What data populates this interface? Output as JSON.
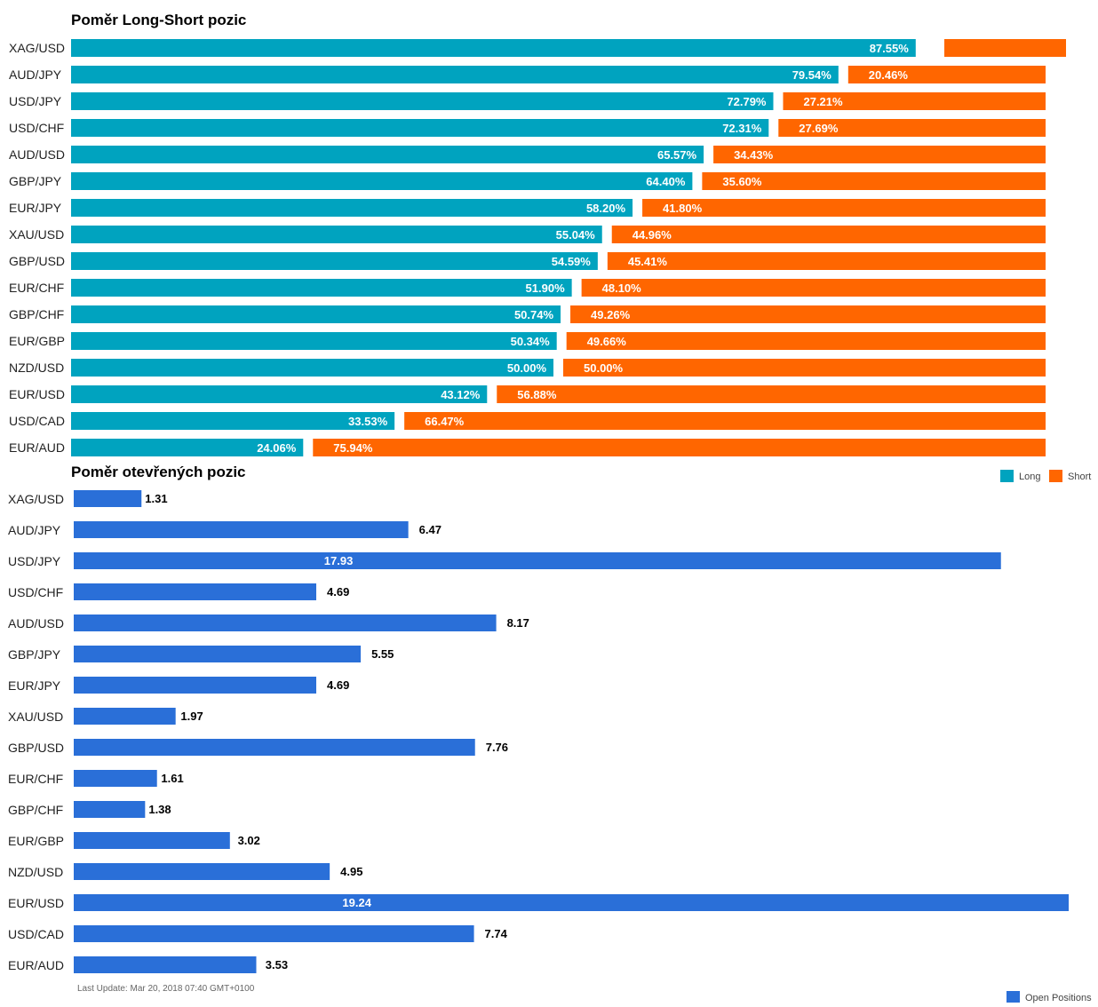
{
  "footer": {
    "last_update": "Last Update: Mar 20, 2018 07:40 GMT+0100"
  },
  "colors": {
    "long": "#00a3bf",
    "short": "#ff6600",
    "open": "#2a6fd8"
  },
  "chart_data": [
    {
      "type": "bar",
      "orientation": "horizontal",
      "stacked": true,
      "title": "Poměr Long-Short pozic",
      "categories": [
        "XAG/USD",
        "AUD/JPY",
        "USD/JPY",
        "USD/CHF",
        "AUD/USD",
        "GBP/JPY",
        "EUR/JPY",
        "XAU/USD",
        "GBP/USD",
        "EUR/CHF",
        "GBP/CHF",
        "EUR/GBP",
        "NZD/USD",
        "EUR/USD",
        "USD/CAD",
        "EUR/AUD"
      ],
      "series": [
        {
          "name": "Long",
          "values": [
            87.55,
            79.54,
            72.79,
            72.31,
            65.57,
            64.4,
            58.2,
            55.04,
            54.59,
            51.9,
            50.74,
            50.34,
            50.0,
            43.12,
            33.53,
            24.06
          ],
          "labels": [
            "87.55%",
            "79.54%",
            "72.79%",
            "72.31%",
            "65.57%",
            "64.40%",
            "58.20%",
            "55.04%",
            "54.59%",
            "51.90%",
            "50.74%",
            "50.34%",
            "50.00%",
            "43.12%",
            "33.53%",
            "24.06%"
          ]
        },
        {
          "name": "Short",
          "values": [
            12.45,
            20.46,
            27.21,
            27.69,
            34.43,
            35.6,
            41.8,
            44.96,
            45.41,
            48.1,
            49.26,
            49.66,
            50.0,
            56.88,
            66.47,
            75.94
          ],
          "labels": [
            "",
            "20.46%",
            "27.21%",
            "27.69%",
            "34.43%",
            "35.60%",
            "41.80%",
            "44.96%",
            "45.41%",
            "48.10%",
            "49.26%",
            "49.66%",
            "50.00%",
            "56.88%",
            "66.47%",
            "75.94%"
          ]
        }
      ],
      "legend": "bottom-right"
    },
    {
      "type": "bar",
      "orientation": "horizontal",
      "title": "Poměr otevřených pozic",
      "categories": [
        "XAG/USD",
        "AUD/JPY",
        "USD/JPY",
        "USD/CHF",
        "AUD/USD",
        "GBP/JPY",
        "EUR/JPY",
        "XAU/USD",
        "GBP/USD",
        "EUR/CHF",
        "GBP/CHF",
        "EUR/GBP",
        "NZD/USD",
        "EUR/USD",
        "USD/CAD",
        "EUR/AUD"
      ],
      "series": [
        {
          "name": "Open Positions",
          "values": [
            1.31,
            6.47,
            17.93,
            4.69,
            8.17,
            5.55,
            4.69,
            1.97,
            7.76,
            1.61,
            1.38,
            3.02,
            4.95,
            19.24,
            7.74,
            3.53
          ],
          "labels": [
            "1.31",
            "6.47",
            "17.93",
            "4.69",
            "8.17",
            "5.55",
            "4.69",
            "1.97",
            "7.76",
            "1.61",
            "1.38",
            "3.02",
            "4.95",
            "19.24",
            "7.74",
            "3.53"
          ]
        }
      ],
      "legend": "bottom-right"
    }
  ]
}
